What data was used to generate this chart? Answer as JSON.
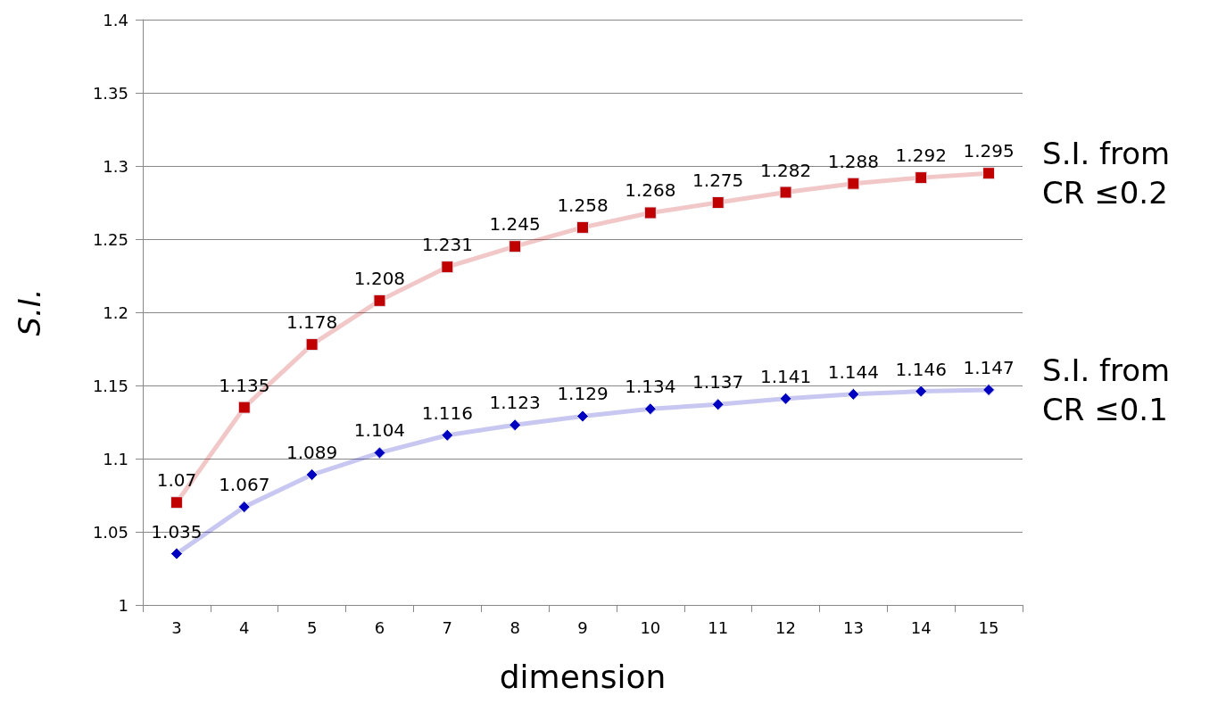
{
  "chart_data": {
    "type": "line",
    "xlabel": "dimension",
    "ylabel": "S.I.",
    "categories": [
      "3",
      "4",
      "5",
      "6",
      "7",
      "8",
      "9",
      "10",
      "11",
      "12",
      "13",
      "14",
      "15"
    ],
    "series": [
      {
        "name": "S.I. from CR ≤0.2",
        "color": "#c00000",
        "marker": "square",
        "values": [
          1.07,
          1.135,
          1.178,
          1.208,
          1.231,
          1.245,
          1.258,
          1.268,
          1.275,
          1.282,
          1.288,
          1.292,
          1.295
        ]
      },
      {
        "name": "S.I. from CR ≤0.1",
        "color": "#0000c0",
        "marker": "diamond",
        "values": [
          1.035,
          1.067,
          1.089,
          1.104,
          1.116,
          1.123,
          1.129,
          1.134,
          1.137,
          1.141,
          1.144,
          1.146,
          1.147
        ]
      }
    ],
    "ylim": [
      1,
      1.4
    ],
    "yticks": [
      1,
      1.05,
      1.1,
      1.15,
      1.2,
      1.25,
      1.3,
      1.35,
      1.4
    ],
    "grid": "y",
    "data_labels": true,
    "legend": false,
    "line_style": "solid"
  }
}
